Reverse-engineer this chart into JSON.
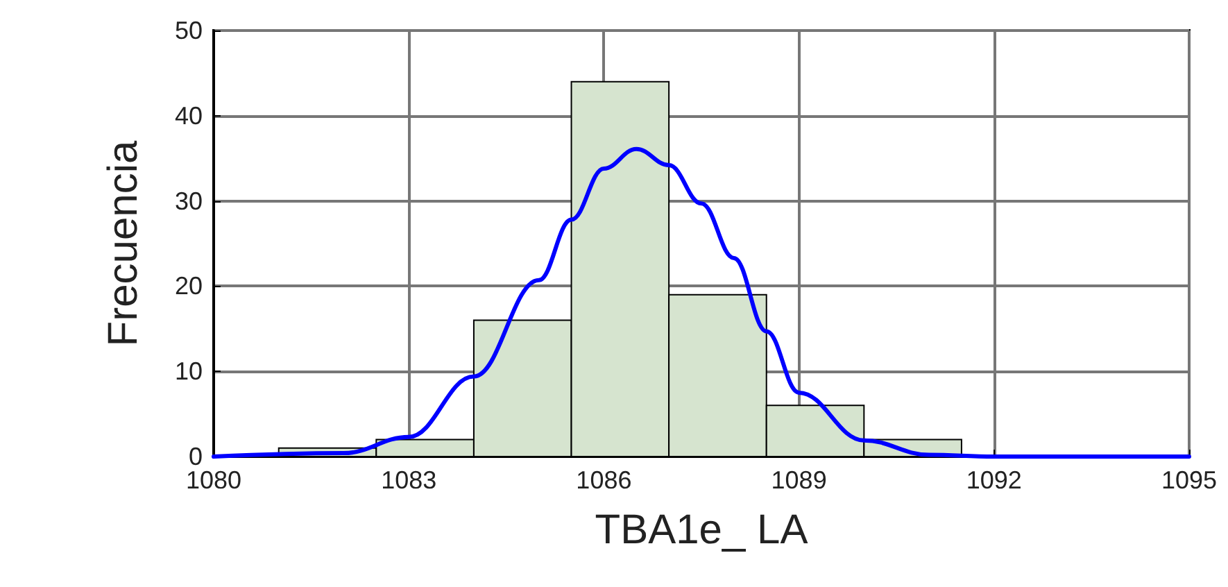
{
  "chart_data": {
    "type": "histogram",
    "xlabel": "TBA1e_ LA",
    "ylabel": "Frecuencia",
    "bins": [
      1081,
      1082.5,
      1084,
      1085.5,
      1087,
      1088.5,
      1090,
      1091.5
    ],
    "values": [
      1,
      2,
      16,
      44,
      19,
      6,
      2
    ],
    "color": "#d6e4cf",
    "series": [
      {
        "type": "line",
        "color": "#0000ff",
        "x": [
          1080,
          1082,
          1083,
          1084,
          1085,
          1085.5,
          1086,
          1086.5,
          1087,
          1087.5,
          1088,
          1088.5,
          1089,
          1090,
          1091,
          1092,
          1095
        ],
        "values": [
          0,
          0.4,
          2.3,
          9.4,
          20.7,
          27.8,
          33.8,
          36.1,
          34.2,
          29.7,
          23.3,
          14.7,
          7.5,
          1.9,
          0.2,
          0,
          0
        ]
      }
    ],
    "xlim": [
      1080,
      1095
    ],
    "xticks": [
      1080,
      1083,
      1086,
      1089,
      1092,
      1095
    ],
    "ylim": [
      0,
      50
    ],
    "yticks": [
      0,
      10,
      20,
      30,
      40,
      50
    ],
    "grid": true,
    "marker": "none"
  }
}
